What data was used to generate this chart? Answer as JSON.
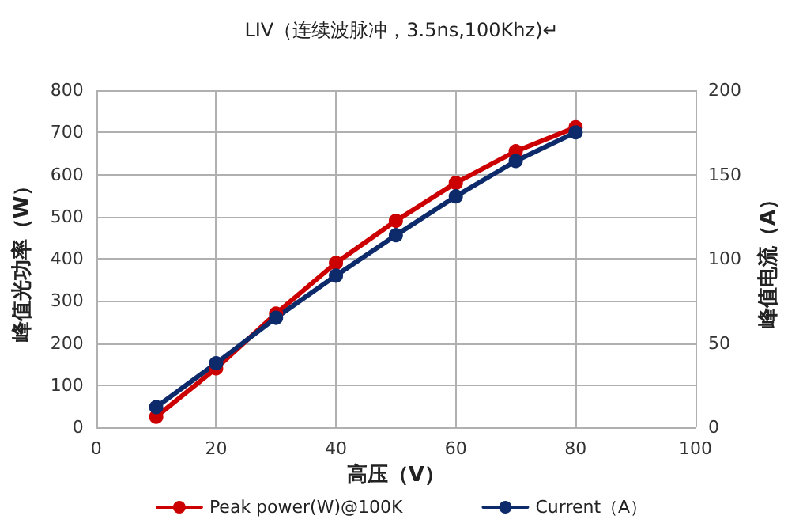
{
  "chart_data": {
    "type": "line",
    "title": "LIV（连续波脉冲，3.5ns,100Khz)↵",
    "xlabel": "高压（V）",
    "ylabel": "峰值光功率（W）",
    "y2label": "峰值电流（A）",
    "x": [
      10,
      20,
      30,
      40,
      50,
      60,
      70,
      80
    ],
    "series": [
      {
        "name": "Peak power(W)@100K",
        "color": "#cc0000",
        "values": [
          25,
          140,
          270,
          390,
          490,
          580,
          655,
          712
        ]
      },
      {
        "name": "Current（A）",
        "color": "#0d2a6b",
        "axis": "y2",
        "values": [
          12,
          38,
          65,
          90,
          114,
          137,
          158,
          175
        ]
      }
    ],
    "xlim": [
      0,
      100
    ],
    "xticks": [
      0,
      20,
      40,
      60,
      80,
      100
    ],
    "ylim": [
      0,
      800
    ],
    "yticks": [
      0,
      100,
      200,
      300,
      400,
      500,
      600,
      700,
      800
    ],
    "y2lim": [
      0,
      200
    ],
    "y2ticks": [
      0,
      50,
      100,
      150,
      200
    ],
    "grid": true,
    "legend": "bottom",
    "marker": "circle",
    "line_style": "solid"
  }
}
